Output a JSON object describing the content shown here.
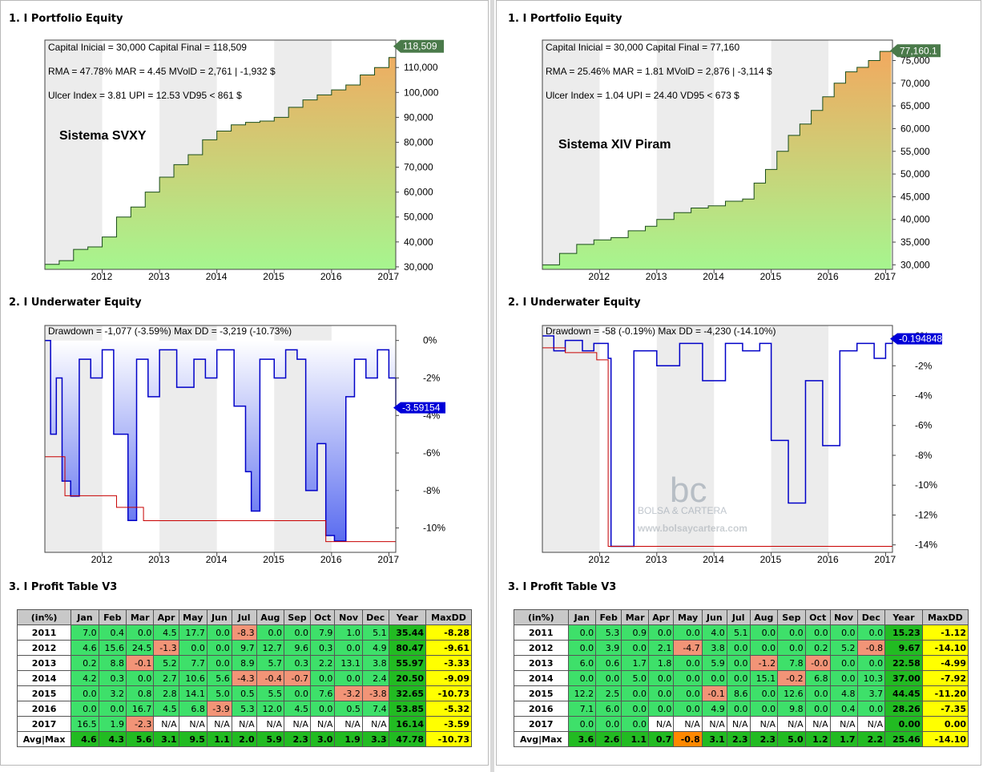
{
  "left": {
    "sections": [
      "1. I Portfolio Equity",
      "2. I Underwater Equity",
      "3. I Profit Table V3"
    ],
    "equity": {
      "stats": [
        "Capital Inicial = 30,000  Capital Final = 118,509",
        "RMA = 47.78%   MAR = 4.45   MVolD = 2,761 | -1,932 $",
        "Ulcer Index = 3.81   UPI = 12.53   VD95 < 861 $"
      ],
      "system_label": "Sistema SVXY",
      "last_value_label": "118,509"
    },
    "underwater": {
      "stats": "Drawdown = -1,077 (-3.59%)       Max DD = -3,219 (-10.73%)",
      "last_value_label": "-3.59154"
    },
    "profit_table": {
      "headers": [
        "(in%)",
        "Jan",
        "Feb",
        "Mar",
        "Apr",
        "May",
        "Jun",
        "Jul",
        "Aug",
        "Sep",
        "Oct",
        "Nov",
        "Dec",
        "Year",
        "MaxDD"
      ],
      "rows": [
        [
          "2011",
          "7.0",
          "0.4",
          "0.0",
          "4.5",
          "17.7",
          "0.0",
          "-8.3",
          "0.0",
          "0.0",
          "7.9",
          "1.0",
          "5.1",
          "35.44",
          "-8.28"
        ],
        [
          "2012",
          "4.6",
          "15.6",
          "24.5",
          "-1.3",
          "0.0",
          "0.0",
          "9.7",
          "12.7",
          "9.6",
          "0.3",
          "0.0",
          "4.9",
          "80.47",
          "-9.61"
        ],
        [
          "2013",
          "0.2",
          "8.8",
          "-0.1",
          "5.2",
          "7.7",
          "0.0",
          "8.9",
          "5.7",
          "0.3",
          "2.2",
          "13.1",
          "3.8",
          "55.97",
          "-3.33"
        ],
        [
          "2014",
          "4.2",
          "0.3",
          "0.0",
          "2.7",
          "10.6",
          "5.6",
          "-4.3",
          "-0.4",
          "-0.7",
          "0.0",
          "0.0",
          "2.4",
          "20.50",
          "-9.09"
        ],
        [
          "2015",
          "0.0",
          "3.2",
          "0.8",
          "2.8",
          "14.1",
          "5.0",
          "0.5",
          "5.5",
          "0.0",
          "7.6",
          "-3.2",
          "-3.8",
          "32.65",
          "-10.73"
        ],
        [
          "2016",
          "0.0",
          "0.0",
          "16.7",
          "4.5",
          "6.8",
          "-3.9",
          "5.3",
          "12.0",
          "4.5",
          "0.0",
          "0.5",
          "7.4",
          "53.85",
          "-5.32"
        ],
        [
          "2017",
          "16.5",
          "1.9",
          "-2.3",
          "N/A",
          "N/A",
          "N/A",
          "N/A",
          "N/A",
          "N/A",
          "N/A",
          "N/A",
          "N/A",
          "16.14",
          "-3.59"
        ],
        [
          "Avg|Max",
          "4.6",
          "4.3",
          "5.6",
          "3.1",
          "9.5",
          "1.1",
          "2.0",
          "5.9",
          "2.3",
          "3.0",
          "1.9",
          "3.3",
          "47.78",
          "-10.73"
        ]
      ]
    }
  },
  "right": {
    "sections": [
      "1. I Portfolio Equity",
      "2. I Underwater Equity",
      "3. I Profit Table V3"
    ],
    "equity": {
      "stats": [
        "Capital Inicial = 30,000  Capital Final = 77,160",
        "RMA = 25.46%   MAR = 1.81   MVolD = 2,876 | -3,114 $",
        "Ulcer Index = 1.04   UPI = 24.40   VD95 < 673 $"
      ],
      "system_label": "Sistema XIV Piram",
      "last_value_label": "77,160.1"
    },
    "underwater": {
      "stats": "Drawdown = -58 (-0.19%)       Max DD = -4,230 (-14.10%)",
      "last_value_label": "-0.194848",
      "watermark": {
        "logo": "bc",
        "name": "BOLSA & CARTERA",
        "url": "www.bolsaycartera.com"
      }
    },
    "profit_table": {
      "headers": [
        "(in%)",
        "Jan",
        "Feb",
        "Mar",
        "Apr",
        "May",
        "Jun",
        "Jul",
        "Aug",
        "Sep",
        "Oct",
        "Nov",
        "Dec",
        "Year",
        "MaxDD"
      ],
      "rows": [
        [
          "2011",
          "0.0",
          "5.3",
          "0.9",
          "0.0",
          "0.0",
          "4.0",
          "5.1",
          "0.0",
          "0.0",
          "0.0",
          "0.0",
          "0.0",
          "15.23",
          "-1.12"
        ],
        [
          "2012",
          "0.0",
          "3.9",
          "0.0",
          "2.1",
          "-4.7",
          "3.8",
          "0.0",
          "0.0",
          "0.0",
          "0.2",
          "5.2",
          "-0.8",
          "9.67",
          "-14.10"
        ],
        [
          "2013",
          "6.0",
          "0.6",
          "1.7",
          "1.8",
          "0.0",
          "5.9",
          "0.0",
          "-1.2",
          "7.8",
          "-0.0",
          "0.0",
          "0.0",
          "22.58",
          "-4.99"
        ],
        [
          "2014",
          "0.0",
          "0.0",
          "5.0",
          "0.0",
          "0.0",
          "0.0",
          "0.0",
          "15.1",
          "-0.2",
          "6.8",
          "0.0",
          "10.3",
          "37.00",
          "-7.92"
        ],
        [
          "2015",
          "12.2",
          "2.5",
          "0.0",
          "0.0",
          "0.0",
          "-0.1",
          "8.6",
          "0.0",
          "12.6",
          "0.0",
          "4.8",
          "3.7",
          "44.45",
          "-11.20"
        ],
        [
          "2016",
          "7.1",
          "6.0",
          "0.0",
          "0.0",
          "0.0",
          "4.9",
          "0.0",
          "0.0",
          "9.8",
          "0.0",
          "0.4",
          "0.0",
          "28.26",
          "-7.35"
        ],
        [
          "2017",
          "0.0",
          "0.0",
          "0.0",
          "N/A",
          "N/A",
          "N/A",
          "N/A",
          "N/A",
          "N/A",
          "N/A",
          "N/A",
          "N/A",
          "0.00",
          "0.00"
        ],
        [
          "Avg|Max",
          "3.6",
          "2.6",
          "1.1",
          "0.7",
          "-0.8",
          "3.1",
          "2.3",
          "2.3",
          "5.0",
          "1.2",
          "1.7",
          "2.2",
          "25.46",
          "-14.10"
        ]
      ]
    }
  },
  "chart_data": [
    {
      "type": "area",
      "title": "1. I Portfolio Equity",
      "series": [
        {
          "name": "Sistema SVXY",
          "x": [
            2011.0,
            2011.25,
            2011.5,
            2011.75,
            2012.0,
            2012.25,
            2012.5,
            2012.75,
            2013.0,
            2013.25,
            2013.5,
            2013.75,
            2014.0,
            2014.25,
            2014.5,
            2014.75,
            2015.0,
            2015.25,
            2015.5,
            2015.75,
            2016.0,
            2016.25,
            2016.5,
            2016.75,
            2017.0,
            2017.12
          ],
          "values": [
            31000,
            32500,
            37000,
            38000,
            42000,
            50000,
            54000,
            60000,
            66000,
            71000,
            75000,
            81000,
            84500,
            87000,
            88000,
            88500,
            90000,
            94000,
            97000,
            99000,
            101000,
            103000,
            107000,
            110000,
            114000,
            118509
          ]
        }
      ],
      "xlabel": "",
      "ylabel": "",
      "xticks": [
        "2012",
        "2013",
        "2014",
        "2015",
        "2016",
        "2017"
      ],
      "yticks": [
        "30,000",
        "40,000",
        "50,000",
        "60,000",
        "70,000",
        "80,000",
        "90,000",
        "100,000",
        "110,000"
      ],
      "ylim": [
        29000,
        121000
      ],
      "xlim": [
        2011.0,
        2017.12
      ],
      "colors": {
        "fill_top": "#f2a95f",
        "fill_bottom": "#a6f68f",
        "line": "#1a4d1a"
      }
    },
    {
      "type": "area",
      "title": "2. I Underwater Equity",
      "series": [
        {
          "name": "Drawdown %",
          "x": [
            2011.0,
            2011.1,
            2011.2,
            2011.3,
            2011.45,
            2011.6,
            2011.8,
            2012.0,
            2012.2,
            2012.45,
            2012.6,
            2012.8,
            2013.0,
            2013.3,
            2013.6,
            2013.8,
            2014.0,
            2014.3,
            2014.5,
            2014.6,
            2014.75,
            2015.0,
            2015.2,
            2015.4,
            2015.55,
            2015.75,
            2015.9,
            2016.05,
            2016.25,
            2016.4,
            2016.6,
            2016.8,
            2017.0,
            2017.12
          ],
          "values": [
            0,
            -5,
            -2,
            -7.5,
            -8.3,
            -1,
            -2,
            -0.5,
            -5,
            -9.6,
            -1,
            -3,
            -0.5,
            -2.5,
            -1,
            -2,
            -0.5,
            -3.5,
            -7,
            -9.1,
            -1,
            -2,
            -0.5,
            -1,
            -8,
            -5.5,
            -10.4,
            -10.7,
            -3,
            -1,
            -2,
            -0.5,
            -2,
            -3.59
          ]
        }
      ],
      "max_dd_line": [
        [
          2011.0,
          -6.2
        ],
        [
          2011.35,
          -6.2
        ],
        [
          2011.35,
          -8.28
        ],
        [
          2012.25,
          -8.28
        ],
        [
          2012.25,
          -8.9
        ],
        [
          2012.72,
          -8.9
        ],
        [
          2012.72,
          -9.61
        ],
        [
          2015.9,
          -9.61
        ],
        [
          2015.9,
          -10.73
        ],
        [
          2017.12,
          -10.73
        ]
      ],
      "xticks": [
        "2012",
        "2013",
        "2014",
        "2015",
        "2016",
        "2017"
      ],
      "yticks": [
        "0%",
        "-2%",
        "-4%",
        "-6%",
        "-8%",
        "-10%"
      ],
      "ylim": [
        -11.3,
        0.8
      ],
      "xlim": [
        2011.0,
        2017.12
      ],
      "colors": {
        "line": "#0000c8",
        "fill": "#5a6cf0",
        "maxdd": "#c80000"
      }
    },
    {
      "type": "area",
      "title": "1. I Portfolio Equity",
      "series": [
        {
          "name": "Sistema XIV Piram",
          "x": [
            2011.0,
            2011.3,
            2011.6,
            2011.9,
            2012.2,
            2012.5,
            2012.8,
            2013.0,
            2013.3,
            2013.6,
            2013.9,
            2014.2,
            2014.5,
            2014.7,
            2014.9,
            2015.1,
            2015.3,
            2015.5,
            2015.7,
            2015.9,
            2016.1,
            2016.3,
            2016.5,
            2016.7,
            2016.9,
            2017.1
          ],
          "values": [
            30000,
            32500,
            34500,
            35500,
            36000,
            37500,
            38500,
            40000,
            41500,
            42500,
            43000,
            44000,
            44500,
            48000,
            51000,
            55000,
            58500,
            61000,
            64000,
            67000,
            70000,
            72500,
            73500,
            75000,
            77000,
            77160
          ]
        }
      ],
      "xlabel": "",
      "ylabel": "",
      "xticks": [
        "2012",
        "2013",
        "2014",
        "2015",
        "2016",
        "2017"
      ],
      "yticks": [
        "30,000",
        "35,000",
        "40,000",
        "45,000",
        "50,000",
        "55,000",
        "60,000",
        "65,000",
        "70,000",
        "75,000"
      ],
      "ylim": [
        29000,
        79500
      ],
      "xlim": [
        2011.0,
        2017.12
      ],
      "colors": {
        "fill_top": "#f2a95f",
        "fill_bottom": "#a6f68f",
        "line": "#1a4d1a"
      }
    },
    {
      "type": "area",
      "title": "2. I Underwater Equity",
      "series": [
        {
          "name": "Drawdown %",
          "x": [
            2011.0,
            2011.2,
            2011.4,
            2011.7,
            2011.9,
            2012.15,
            2012.2,
            2012.6,
            2013.0,
            2013.4,
            2013.8,
            2014.2,
            2014.5,
            2014.8,
            2015.0,
            2015.3,
            2015.6,
            2015.9,
            2016.2,
            2016.5,
            2016.8,
            2017.0,
            2017.12
          ],
          "values": [
            0,
            -1,
            -0.3,
            -1,
            -0.5,
            -1.5,
            -14.1,
            -1,
            -2,
            -0.5,
            -3,
            -0.5,
            -1,
            -0.5,
            -7,
            -11.2,
            -3,
            -7.35,
            -1,
            -0.5,
            -1.5,
            -0.5,
            -0.19
          ]
        }
      ],
      "max_dd_line": [
        [
          2011.0,
          -0.8
        ],
        [
          2011.4,
          -0.8
        ],
        [
          2011.4,
          -1.12
        ],
        [
          2011.95,
          -1.12
        ],
        [
          2011.95,
          -1.6
        ],
        [
          2012.15,
          -1.6
        ],
        [
          2012.15,
          -14.1
        ],
        [
          2017.12,
          -14.1
        ]
      ],
      "xticks": [
        "2012",
        "2013",
        "2014",
        "2015",
        "2016",
        "2017"
      ],
      "yticks": [
        "0%",
        "-2%",
        "-4%",
        "-6%",
        "-8%",
        "-10%",
        "-12%",
        "-14%"
      ],
      "ylim": [
        -14.5,
        0.7
      ],
      "xlim": [
        2011.0,
        2017.12
      ],
      "colors": {
        "line": "#0000c8",
        "fill": "#5a6cf0",
        "maxdd": "#c80000"
      }
    }
  ]
}
